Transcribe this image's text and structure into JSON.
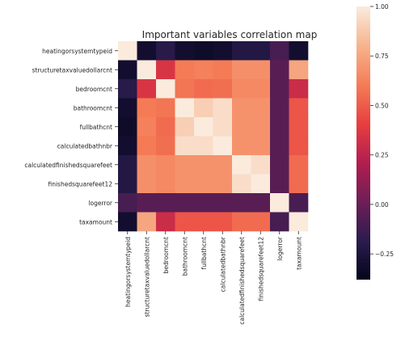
{
  "chart_data": {
    "type": "heatmap",
    "title": "Important variables correlation map",
    "variables": [
      "heatingorsystemtypeid",
      "structuretaxvaluedollarcnt",
      "bedroomcnt",
      "bathroomcnt",
      "fullbathcnt",
      "calculatedbathnbr",
      "calculatedfinishedsquarefeet",
      "finishedsquarefeet12",
      "logerror",
      "taxamount"
    ],
    "matrix": [
      [
        1.0,
        -0.3,
        -0.2,
        -0.3,
        -0.32,
        -0.3,
        -0.22,
        -0.22,
        -0.1,
        -0.3
      ],
      [
        -0.3,
        1.0,
        0.35,
        0.6,
        0.62,
        0.6,
        0.67,
        0.67,
        -0.05,
        0.75
      ],
      [
        -0.2,
        0.35,
        1.0,
        0.58,
        0.55,
        0.56,
        0.65,
        0.65,
        -0.05,
        0.3
      ],
      [
        -0.3,
        0.6,
        0.58,
        1.0,
        0.9,
        0.95,
        0.68,
        0.68,
        -0.05,
        0.48
      ],
      [
        -0.32,
        0.62,
        0.55,
        0.9,
        1.0,
        0.95,
        0.68,
        0.68,
        -0.05,
        0.48
      ],
      [
        -0.3,
        0.6,
        0.56,
        0.95,
        0.95,
        1.0,
        0.68,
        0.68,
        -0.05,
        0.48
      ],
      [
        -0.22,
        0.67,
        0.65,
        0.68,
        0.68,
        0.68,
        1.0,
        0.95,
        -0.05,
        0.55
      ],
      [
        -0.22,
        0.67,
        0.65,
        0.68,
        0.68,
        0.68,
        0.95,
        1.0,
        -0.05,
        0.55
      ],
      [
        -0.1,
        -0.05,
        -0.05,
        -0.05,
        -0.05,
        -0.05,
        -0.05,
        -0.05,
        1.0,
        -0.1
      ],
      [
        -0.3,
        0.75,
        0.3,
        0.48,
        0.48,
        0.48,
        0.55,
        0.55,
        -0.1,
        1.0
      ]
    ],
    "colorbar": {
      "vmin": -0.38,
      "vmax": 1.0,
      "ticks": [
        1.0,
        0.75,
        0.5,
        0.25,
        0.0,
        -0.25
      ],
      "tick_labels": [
        "1.00",
        "0.75",
        "0.50",
        "0.25",
        "0.00",
        "−0.25"
      ]
    },
    "colormap": "rocket",
    "colormap_stops": [
      "#03051a",
      "#2b1c4e",
      "#6e1f57",
      "#b21e4f",
      "#e83f3f",
      "#f47d57",
      "#f6b48e",
      "#faebdd"
    ]
  }
}
